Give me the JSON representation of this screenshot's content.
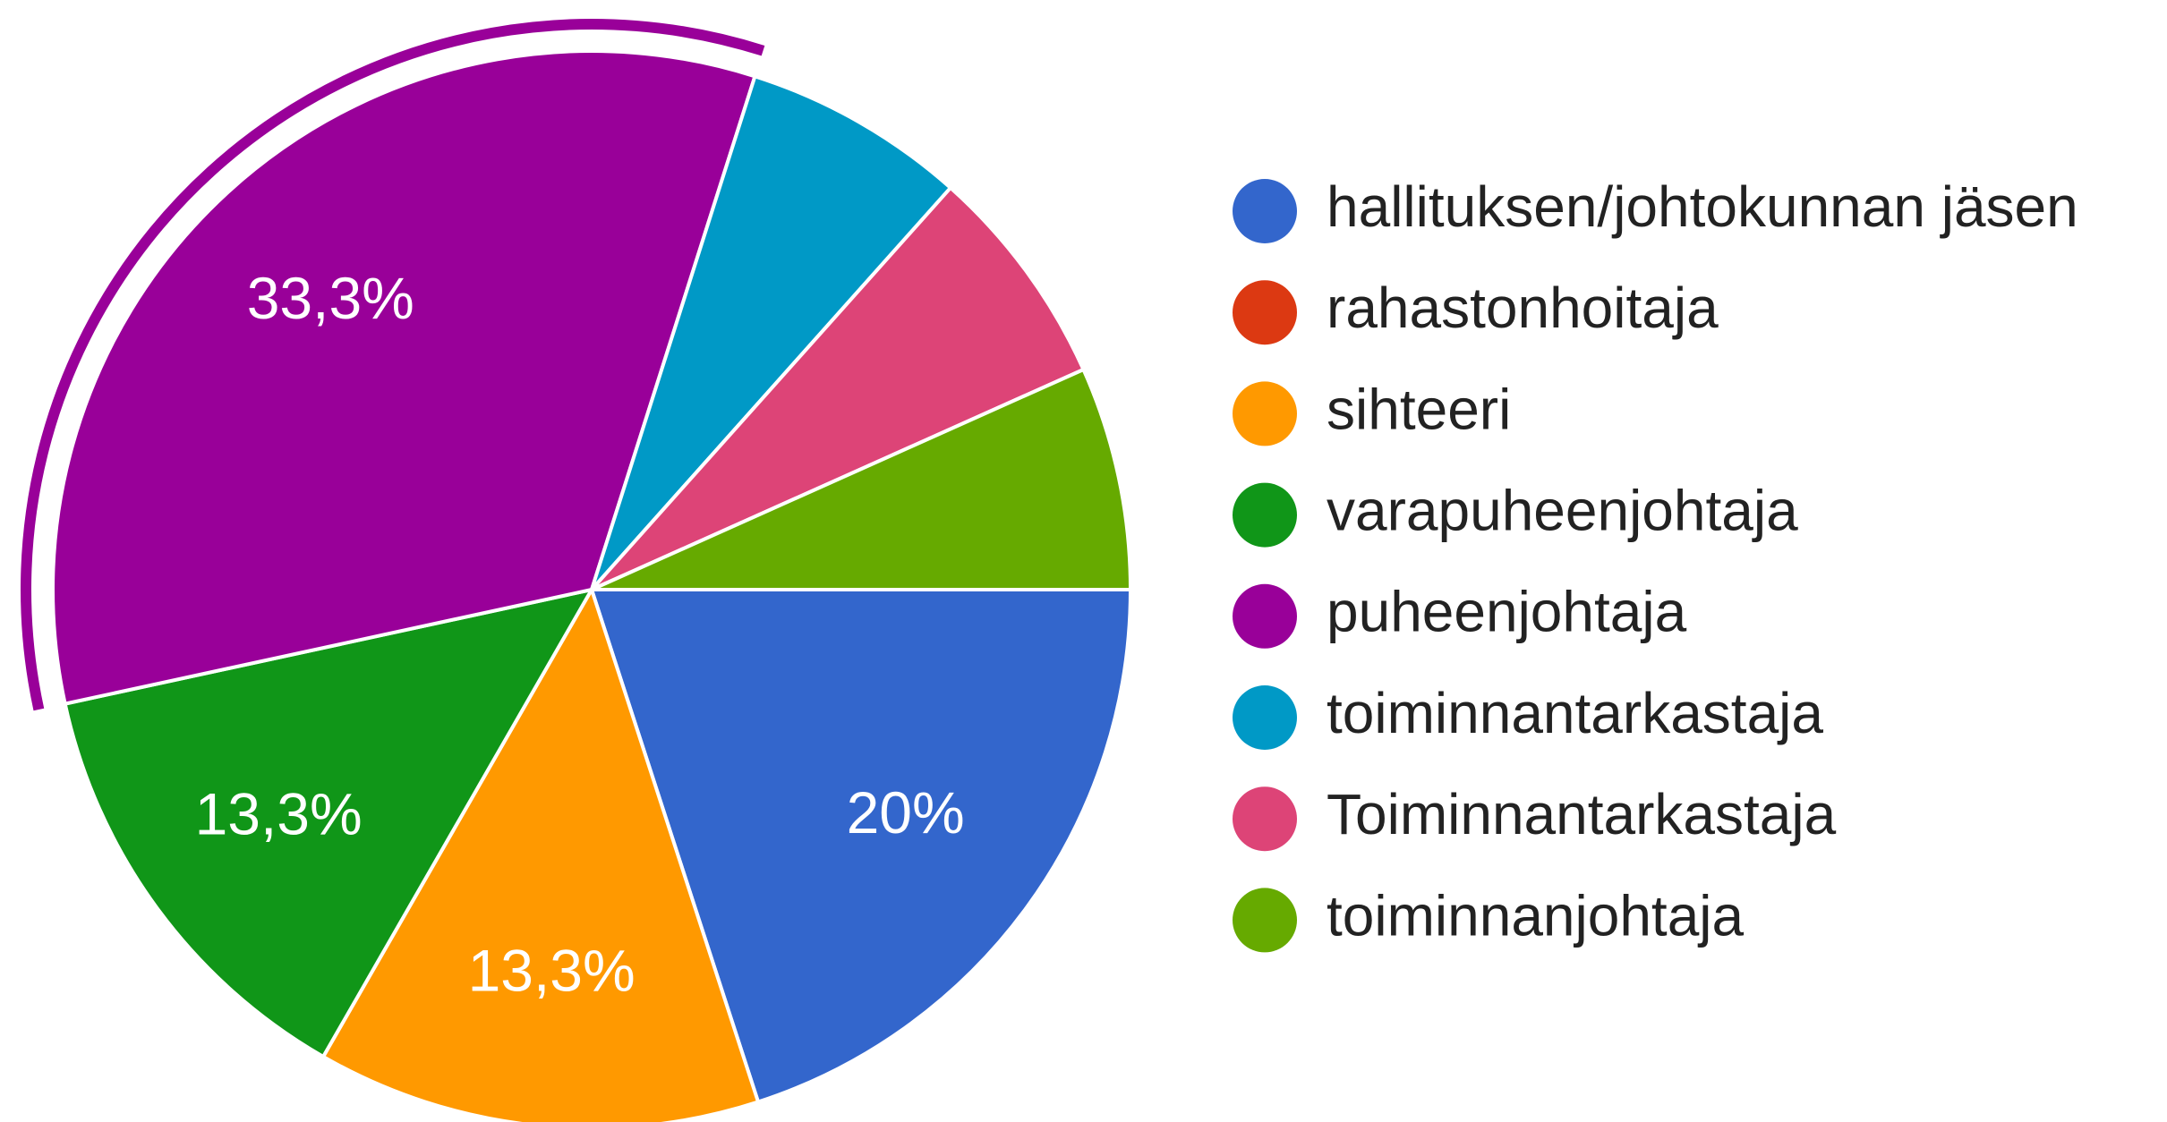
{
  "chart_data": {
    "type": "pie",
    "categories": [
      "hallituksen/johtokunnan jäsen",
      "rahastonhoitaja",
      "sihteeri",
      "varapuheenjohtaja",
      "puheenjohtaja",
      "toiminnantarkastaja",
      "Toiminnantarkastaja",
      "toiminnanjohtaja"
    ],
    "values": [
      20,
      0,
      13.3,
      13.3,
      33.3,
      6.7,
      6.7,
      6.7
    ],
    "value_labels": [
      "20%",
      null,
      "13,3%",
      "13,3%",
      "33,3%",
      null,
      null,
      null
    ],
    "colors": [
      "#3366cc",
      "#dc3912",
      "#ff9900",
      "#109618",
      "#990099",
      "#0099c6",
      "#dd4477",
      "#66aa00"
    ],
    "highlighted": 4,
    "legend": "right"
  }
}
